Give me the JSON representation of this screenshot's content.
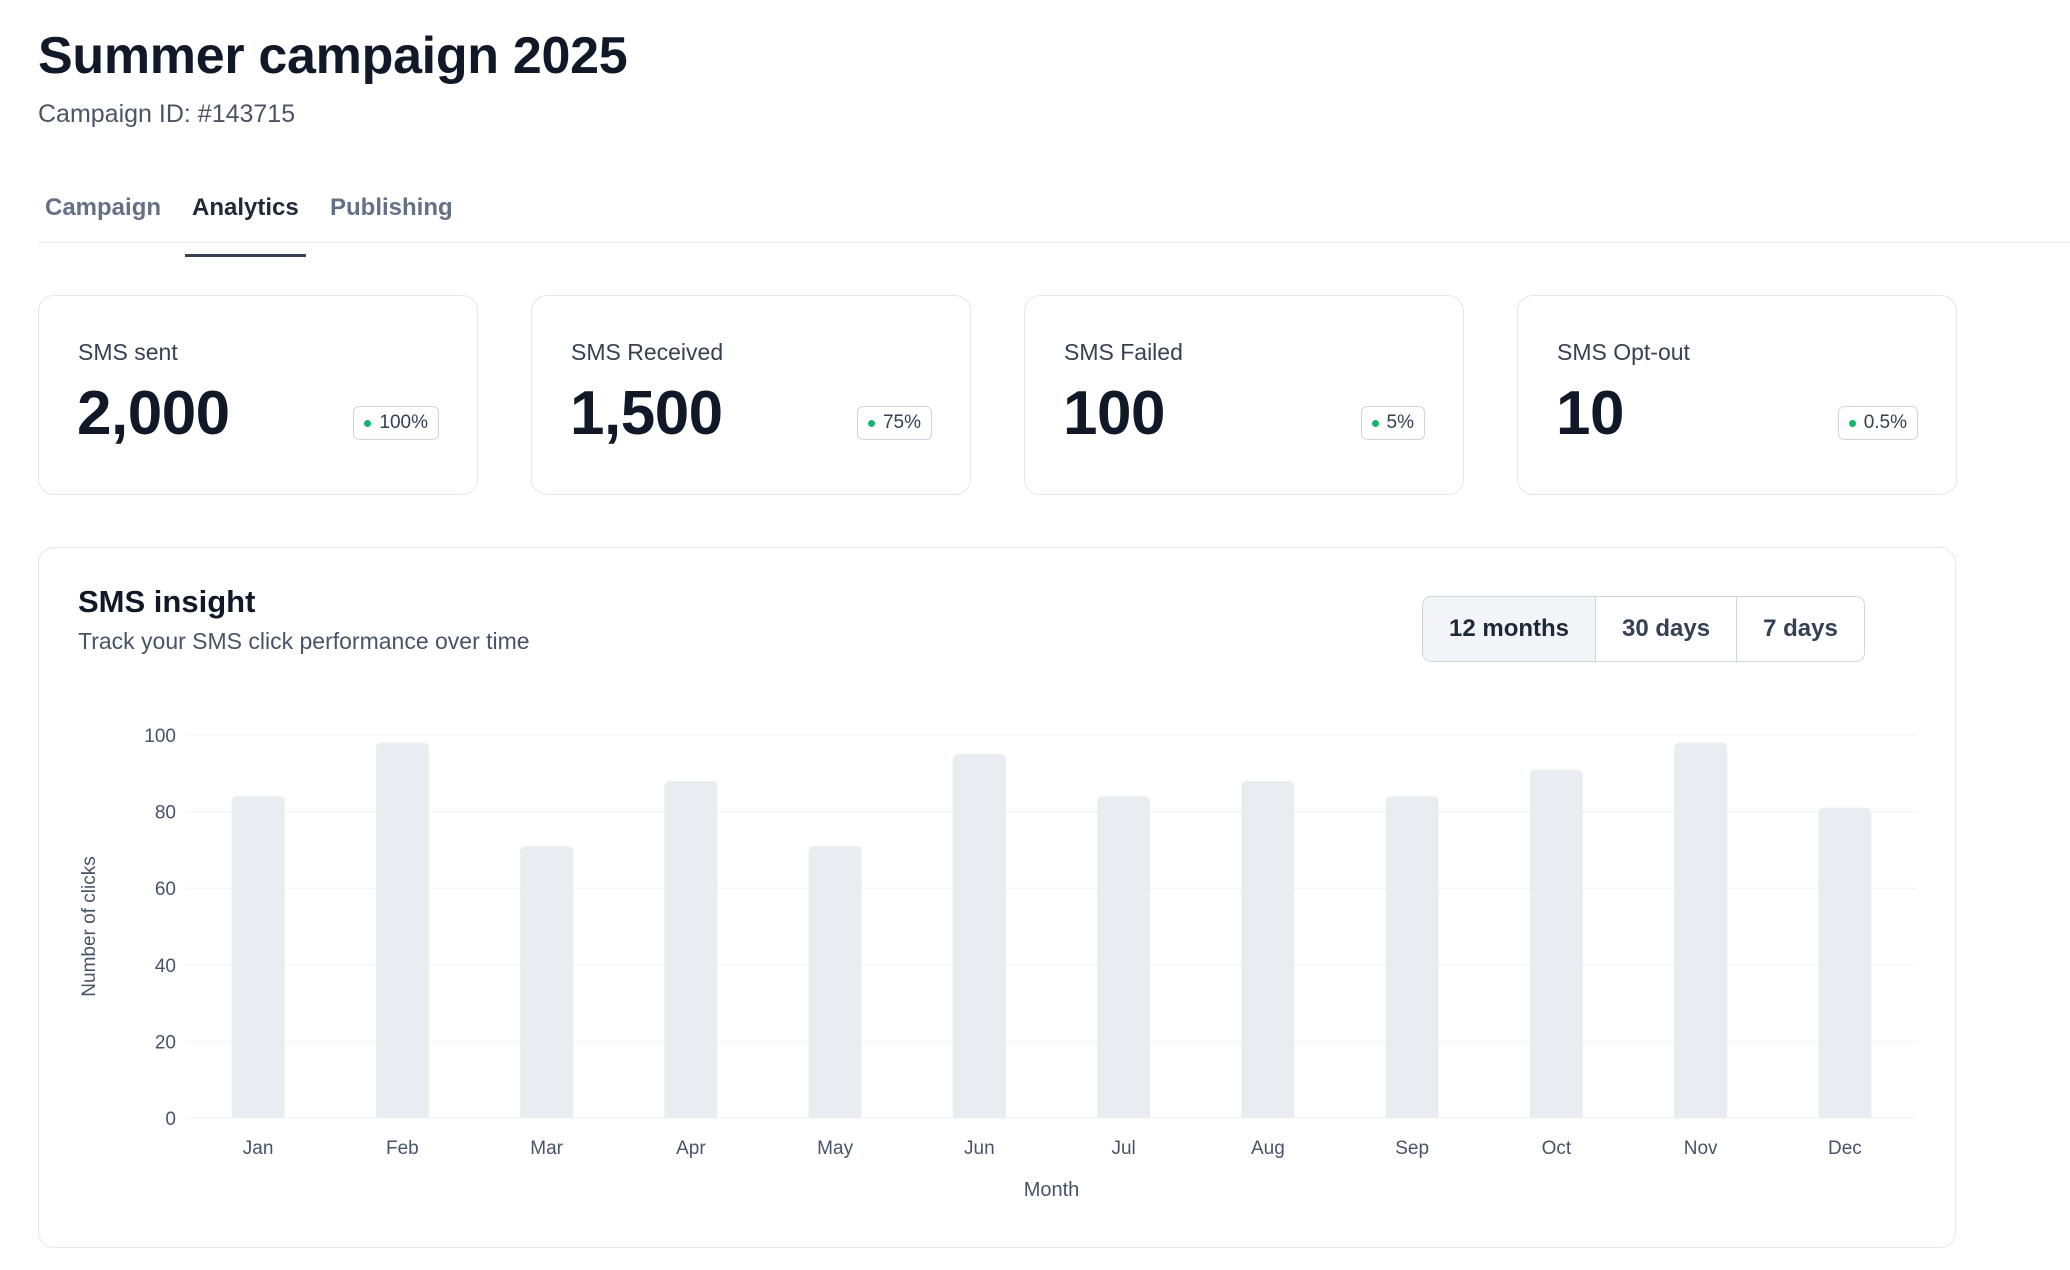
{
  "header": {
    "title": "Summer campaign 2025",
    "campaign_id": "Campaign ID: #143715"
  },
  "tabs": [
    {
      "label": "Campaign",
      "active": false
    },
    {
      "label": "Analytics",
      "active": true
    },
    {
      "label": "Publishing",
      "active": false
    }
  ],
  "stats": [
    {
      "label": "SMS sent",
      "value": "2,000",
      "badge": "100%"
    },
    {
      "label": "SMS Received",
      "value": "1,500",
      "badge": "75%"
    },
    {
      "label": "SMS Failed",
      "value": "100",
      "badge": "5%"
    },
    {
      "label": "SMS Opt-out",
      "value": "10",
      "badge": "0.5%"
    }
  ],
  "insight": {
    "title": "SMS insight",
    "subtitle": "Track your SMS click performance over time",
    "ranges": [
      {
        "label": "12 months",
        "active": true
      },
      {
        "label": "30 days",
        "active": false
      },
      {
        "label": "7 days",
        "active": false
      }
    ]
  },
  "colors": {
    "bar": "#e9ecf0",
    "grid": "#eef0f3",
    "badge_dot": "#12b76a",
    "active_tab_underline": "#374151"
  },
  "chart_data": {
    "type": "bar",
    "categories": [
      "Jan",
      "Feb",
      "Mar",
      "Apr",
      "May",
      "Jun",
      "Jul",
      "Aug",
      "Sep",
      "Oct",
      "Nov",
      "Dec"
    ],
    "values": [
      84,
      98,
      71,
      88,
      71,
      95,
      84,
      88,
      84,
      91,
      98,
      81
    ],
    "xlabel": "Month",
    "ylabel": "Number of clicks",
    "ylim": [
      0,
      100
    ],
    "yticks": [
      0,
      20,
      40,
      60,
      80,
      100
    ],
    "grid": true
  }
}
